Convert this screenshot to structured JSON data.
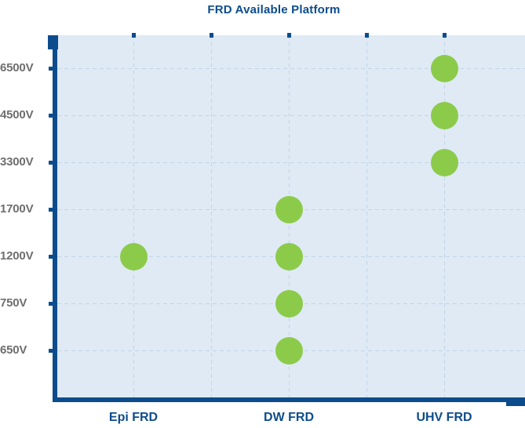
{
  "chart_data": {
    "type": "scatter",
    "title": "FRD Available Platform",
    "xlabel": "",
    "ylabel": "",
    "categories": [
      "Epi FRD",
      "DW FRD",
      "UHV FRD"
    ],
    "y_categories": [
      "6500V",
      "4500V",
      "3300V",
      "1700V",
      "1200V",
      "750V",
      "650V"
    ],
    "points": [
      {
        "platform": "Epi FRD",
        "voltage": "1200V"
      },
      {
        "platform": "DW FRD",
        "voltage": "1700V"
      },
      {
        "platform": "DW FRD",
        "voltage": "1200V"
      },
      {
        "platform": "DW FRD",
        "voltage": "750V"
      },
      {
        "platform": "DW FRD",
        "voltage": "650V"
      },
      {
        "platform": "UHV FRD",
        "voltage": "6500V"
      },
      {
        "platform": "UHV FRD",
        "voltage": "4500V"
      },
      {
        "platform": "UHV FRD",
        "voltage": "3300V"
      }
    ],
    "grid": true,
    "grid_style": "dashed",
    "legend": false,
    "colors": {
      "dot": "#8CCB4A",
      "axis": "#0D4C8C",
      "title_text": "#0D4C8C",
      "x_label_text": "#0D4C8C",
      "y_label_text": "#6E6E6E",
      "plot_background": "#DFEAF5",
      "gridline": "#C3D4E6"
    }
  }
}
